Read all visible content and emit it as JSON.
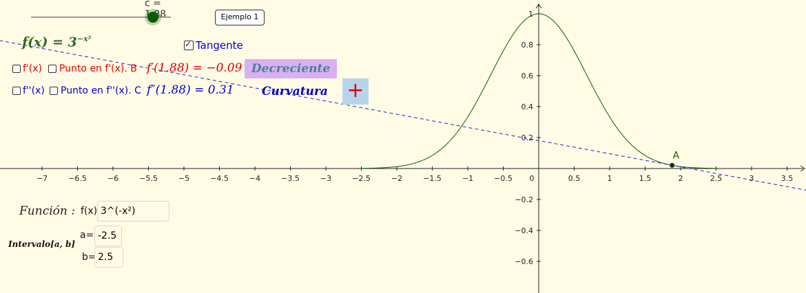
{
  "slider": {
    "label": "c = 1.88",
    "value": 1.88,
    "min": -1.5,
    "max": 2.5
  },
  "example_button": "Ejemplo 1",
  "function_title": {
    "lhs": "f(x) = 3",
    "exp": "−x²"
  },
  "tangent": {
    "label": "Tangente",
    "checked": true
  },
  "row1": {
    "checkbox_fp": "f'(x)",
    "checkbox_point_fp": "Punto en f'(x). B",
    "value_text": "f′(1.88) = −0.09",
    "status": "Decreciente"
  },
  "row2": {
    "checkbox_fpp": "f''(x)",
    "checkbox_point_fpp": "Punto en f''(x). C",
    "value_text": "f″(1.88) = 0.31",
    "curvature_label": "Curvatura",
    "curvature_sign": "+"
  },
  "inputs": {
    "function_label": "Función :",
    "function_prefix": "f(x)",
    "function_value": "3^(-x²)",
    "interval_label": "Intervalo[a, b]",
    "a_label": "a=",
    "a_value": "-2.5",
    "b_label": "b=",
    "b_value": "2.5"
  },
  "point_label": "A",
  "colors": {
    "curve": "#006400",
    "tangent": "#2222cc",
    "red": "#e00000",
    "blue": "#0000cc",
    "green": "#006400",
    "status_bg": "#dab0f0",
    "status_text": "#4a7fa0",
    "curv_bg": "#b8d4ec"
  },
  "chart_data": {
    "type": "line",
    "title": "",
    "series": [
      {
        "name": "",
        "expression": "3^(-x^2)",
        "domain": [
          -2.5,
          2.5
        ]
      },
      {
        "name": "",
        "expression": "tangent at x=1.88",
        "slope": -0.09,
        "point": [
          1.88,
          0.02
        ]
      }
    ],
    "x_ticks": [
      "-7",
      "-6.5",
      "-6",
      "-5.5",
      "-5",
      "-4.5",
      "-4",
      "-3.5",
      "-3",
      "-2.5",
      "-2",
      "-1.5",
      "-1",
      "-0.5",
      "0",
      "0.5",
      "1",
      "1.5",
      "2",
      "2.5",
      "3",
      "3.5"
    ],
    "y_ticks": [
      "-0.6",
      "-0.4",
      "-0.2",
      "0.2",
      "0.4",
      "0.6",
      "0.8",
      "1"
    ],
    "xlim": [
      -7.6,
      3.8
    ],
    "ylim": [
      -0.79,
      1.1
    ],
    "grid": false
  }
}
